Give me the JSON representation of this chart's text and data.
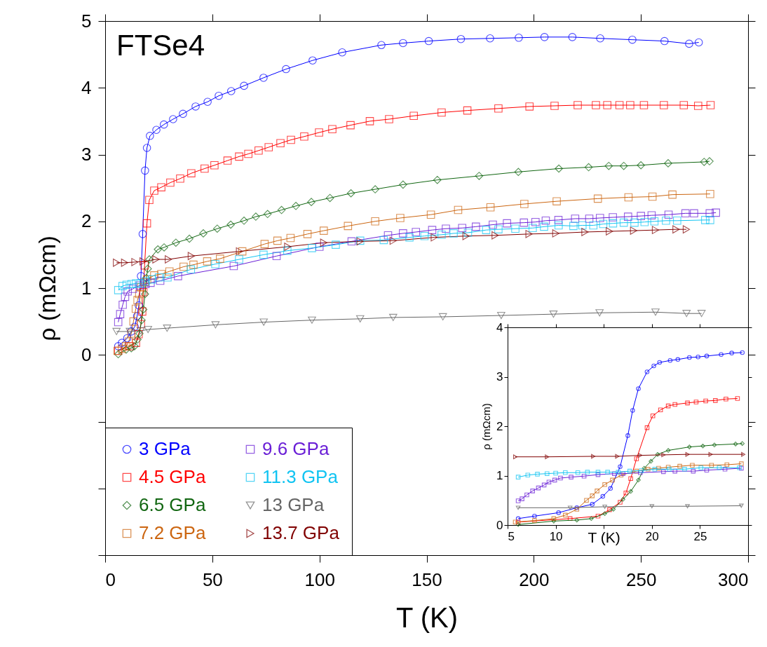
{
  "chart_data": [
    {
      "type": "line",
      "xlabel": "T (K)",
      "ylabel": "ρ (mΩcm)",
      "annotations": [
        "FTSe4"
      ],
      "xlim": [
        0,
        300
      ],
      "ylim": [
        -3,
        5
      ],
      "xticks": [
        0,
        50,
        100,
        150,
        200,
        250,
        300
      ],
      "yticks": [
        {
          "value": -3,
          "label": null
        },
        {
          "value": -2,
          "label": null
        },
        {
          "value": -1,
          "label": null
        },
        0,
        1,
        2,
        3,
        4,
        5
      ],
      "grid": false,
      "legend": "bottom left",
      "line_style": "solid",
      "series": [
        {
          "name": "3 GPa",
          "color": "#0000ff",
          "marker": "circle",
          "x": [
            6.1,
            7.8,
            10.3,
            12.2,
            13.8,
            14.9,
            15.7,
            16.7,
            17.5,
            18.6,
            19.5,
            20.9,
            23.9,
            27.4,
            31.7,
            36.3,
            42.2,
            47.8,
            53,
            58.8,
            64.8,
            73.9,
            84.4,
            96.8,
            110.6,
            128.9,
            139,
            151,
            166,
            179.6,
            193,
            205,
            218,
            231,
            246,
            261,
            272.5,
            277
          ],
          "values": [
            0.13,
            0.18,
            0.25,
            0.35,
            0.42,
            0.58,
            0.74,
            1.18,
            1.81,
            2.76,
            3.1,
            3.28,
            3.37,
            3.45,
            3.53,
            3.61,
            3.72,
            3.79,
            3.88,
            3.95,
            4.03,
            4.15,
            4.28,
            4.41,
            4.53,
            4.64,
            4.67,
            4.7,
            4.73,
            4.74,
            4.75,
            4.76,
            4.76,
            4.74,
            4.72,
            4.7,
            4.66,
            4.68
          ]
        },
        {
          "name": "4.5 GPa",
          "color": "#ff0000",
          "marker": "square",
          "x": [
            6.1,
            11.5,
            14.4,
            15.6,
            16.7,
            17.3,
            17.8,
            18.4,
            19.5,
            20.6,
            22.9,
            26.2,
            30.4,
            35,
            40.2,
            46.4,
            51,
            57.1,
            62.5,
            66.8,
            71.6,
            76.3,
            81.8,
            86.7,
            92.9,
            99.8,
            106,
            114.5,
            123.5,
            132.5,
            144,
            157,
            169,
            183.5,
            198,
            209.7,
            220.5,
            229,
            234.3,
            240,
            245,
            251.4,
            260.7,
            270,
            276.7,
            282.5
          ],
          "values": [
            0.06,
            0.13,
            0.18,
            0.31,
            0.46,
            0.65,
            0.94,
            1.34,
            1.97,
            2.32,
            2.46,
            2.51,
            2.58,
            2.64,
            2.72,
            2.79,
            2.84,
            2.91,
            2.97,
            3.01,
            3.06,
            3.11,
            3.17,
            3.22,
            3.27,
            3.33,
            3.38,
            3.44,
            3.5,
            3.53,
            3.58,
            3.63,
            3.66,
            3.69,
            3.72,
            3.73,
            3.74,
            3.74,
            3.74,
            3.74,
            3.74,
            3.74,
            3.74,
            3.74,
            3.73,
            3.74
          ]
        },
        {
          "name": "6.5 GPa",
          "color": "#116611",
          "marker": "diamond",
          "x": [
            6.1,
            9.8,
            12.2,
            13.7,
            15.1,
            16,
            17,
            17.8,
            18.6,
            19.2,
            19.9,
            20.6,
            24.6,
            27.5,
            33,
            39.3,
            45.8,
            52.3,
            58.6,
            64.8,
            70.3,
            75.8,
            82.3,
            89,
            96.2,
            104.9,
            114.7,
            126,
            139,
            155,
            174.5,
            192.8,
            211.7,
            225.6,
            235,
            242,
            250,
            262.7,
            279.5,
            282
          ],
          "values": [
            0.01,
            0.08,
            0.1,
            0.13,
            0.23,
            0.32,
            0.52,
            0.68,
            0.91,
            1.15,
            1.29,
            1.43,
            1.58,
            1.61,
            1.68,
            1.74,
            1.82,
            1.89,
            1.95,
            2.01,
            2.07,
            2.11,
            2.17,
            2.23,
            2.29,
            2.35,
            2.42,
            2.48,
            2.55,
            2.62,
            2.68,
            2.74,
            2.79,
            2.81,
            2.83,
            2.83,
            2.84,
            2.87,
            2.89,
            2.9
          ]
        },
        {
          "name": "7.2 GPa",
          "color": "#cc6611",
          "marker": "square",
          "x": [
            5.8,
            7.8,
            9.8,
            11,
            12.2,
            13.2,
            14.3,
            15.1,
            15.9,
            16.8,
            18.4,
            19.6,
            22.9,
            26.2,
            30,
            36.6,
            41.2,
            47.6,
            53.6,
            64,
            74.4,
            80.4,
            86.5,
            94.4,
            102,
            113.3,
            126,
            137.7,
            152,
            164.7,
            179.8,
            195.6,
            210.7,
            229.9,
            244.2,
            255.4,
            264.7,
            282.3
          ],
          "values": [
            0.06,
            0.09,
            0.13,
            0.2,
            0.32,
            0.5,
            0.69,
            0.82,
            0.91,
            1.01,
            1.09,
            1.13,
            1.19,
            1.21,
            1.25,
            1.32,
            1.35,
            1.4,
            1.44,
            1.55,
            1.66,
            1.71,
            1.75,
            1.81,
            1.86,
            1.93,
            2.0,
            2.05,
            2.1,
            2.17,
            2.21,
            2.26,
            2.3,
            2.34,
            2.36,
            2.37,
            2.4,
            2.41
          ]
        },
        {
          "name": "9.6 GPa",
          "color": "#6a1fd6",
          "marker": "square",
          "x": [
            6.1,
            7,
            8.2,
            9.3,
            10.5,
            12.95,
            16.1,
            18.8,
            21.2,
            25.7,
            34,
            60,
            80,
            100,
            115,
            132,
            139,
            145,
            152.6,
            159,
            166.6,
            173,
            180.9,
            187.5,
            195.4,
            200.8,
            205.6,
            211.5,
            219.3,
            225.9,
            230.9,
            236.9,
            244,
            250,
            255,
            262.9,
            270.8,
            274.8,
            282.1,
            285
          ],
          "values": [
            0.49,
            0.61,
            0.75,
            0.87,
            0.95,
            0.99,
            1.04,
            1.06,
            1.08,
            1.11,
            1.18,
            1.33,
            1.48,
            1.62,
            1.7,
            1.79,
            1.82,
            1.84,
            1.87,
            1.89,
            1.9,
            1.92,
            1.95,
            1.97,
            1.98,
            1.99,
            2.01,
            2.02,
            2.04,
            2.04,
            2.05,
            2.06,
            2.07,
            2.08,
            2.09,
            2.1,
            2.12,
            2.12,
            2.12,
            2.13
          ]
        },
        {
          "name": "11.3 GPa",
          "color": "#11c4f2",
          "marker": "square",
          "x": [
            6.1,
            8.1,
            10,
            12.3,
            14.4,
            16.5,
            18.9,
            21.8,
            25.1,
            29.1,
            40,
            51.4,
            62.5,
            73.9,
            85,
            96.5,
            107.6,
            119,
            130,
            142,
            149,
            157,
            162.6,
            169.3,
            177.8,
            183.5,
            191.4,
            199.5,
            204.8,
            211.6,
            218.5,
            222.7,
            227.8,
            232.4,
            237,
            242,
            247,
            251.7,
            256.3,
            261.7,
            266.9,
            280,
            282.3
          ],
          "values": [
            0.97,
            1.03,
            1.05,
            1.06,
            1.07,
            1.07,
            1.1,
            1.13,
            1.16,
            1.16,
            1.28,
            1.36,
            1.43,
            1.5,
            1.56,
            1.6,
            1.65,
            1.71,
            1.72,
            1.76,
            1.78,
            1.8,
            1.82,
            1.83,
            1.87,
            1.88,
            1.89,
            1.9,
            1.92,
            1.94,
            1.93,
            1.94,
            1.94,
            1.96,
            1.97,
            1.98,
            1.98,
            1.99,
            2.0,
            2.01,
            2.01,
            2.02,
            2.02
          ]
        },
        {
          "name": "13 GPa",
          "color": "#666666",
          "marker": "triangle-down",
          "x": [
            5.3,
            11.5,
            16.6,
            20,
            28.9,
            51.5,
            74,
            96.5,
            119,
            134.4,
            157.6,
            184.8,
            209.2,
            230.7,
            256.8,
            271.3,
            278.3
          ],
          "values": [
            0.35,
            0.35,
            0.36,
            0.38,
            0.4,
            0.45,
            0.49,
            0.52,
            0.54,
            0.56,
            0.57,
            0.59,
            0.61,
            0.63,
            0.64,
            0.62,
            0.62
          ]
        },
        {
          "name": "13.7 GPa",
          "color": "#800000",
          "marker": "triangle-right",
          "x": [
            5.3,
            9.1,
            13.9,
            17.7,
            23.7,
            29.5,
            40.2,
            62.7,
            85.2,
            102,
            119,
            134.4,
            153.6,
            168.4,
            182,
            197.8,
            210.3,
            223.9,
            235.3,
            246.6,
            256.8,
            266.4,
            271.2
          ],
          "values": [
            1.38,
            1.38,
            1.39,
            1.4,
            1.43,
            1.43,
            1.48,
            1.55,
            1.62,
            1.68,
            1.7,
            1.71,
            1.76,
            1.78,
            1.79,
            1.81,
            1.82,
            1.84,
            1.85,
            1.86,
            1.87,
            1.88,
            1.88
          ]
        }
      ]
    },
    {
      "type": "line",
      "xlabel": "T (K)",
      "ylabel": "ρ (mΩcm)",
      "xlim": [
        5,
        30
      ],
      "ylim": [
        0,
        4
      ],
      "xticks": [
        5,
        10,
        {
          "value": 15,
          "label": null
        },
        20,
        25,
        {
          "value": 30,
          "label": null
        }
      ],
      "yticks": [
        0,
        1,
        2,
        3,
        4
      ],
      "grid": false,
      "line_style": "solid",
      "series": [
        {
          "color": "#0000ff",
          "marker": "circle",
          "x": [
            6.1,
            7.8,
            10.3,
            12.2,
            13.8,
            14.9,
            15.7,
            16.7,
            17.5,
            18.0,
            18.6,
            19.5,
            20.2,
            20.8,
            21.9,
            22.7,
            23.9,
            24.8,
            25.7,
            27.2,
            28.3,
            29.4
          ],
          "values": [
            0.13,
            0.18,
            0.25,
            0.35,
            0.42,
            0.58,
            0.74,
            1.18,
            1.81,
            2.32,
            2.76,
            3.1,
            3.22,
            3.29,
            3.33,
            3.35,
            3.39,
            3.4,
            3.42,
            3.45,
            3.48,
            3.49
          ]
        },
        {
          "color": "#ff0000",
          "marker": "square",
          "x": [
            6.1,
            11.5,
            14.4,
            15.6,
            16.7,
            17.3,
            17.8,
            18.4,
            19.5,
            20.1,
            20.9,
            21.7,
            22.4,
            23.7,
            24.6,
            25.6,
            26.6,
            27.7,
            28.9
          ],
          "values": [
            0.06,
            0.13,
            0.18,
            0.31,
            0.46,
            0.65,
            0.94,
            1.34,
            1.97,
            2.21,
            2.33,
            2.41,
            2.44,
            2.47,
            2.49,
            2.51,
            2.52,
            2.55,
            2.56
          ]
        },
        {
          "color": "#116611",
          "marker": "diamond",
          "x": [
            6.1,
            9.8,
            12.2,
            13.7,
            15.1,
            16,
            17,
            17.8,
            18.6,
            19.2,
            19.9,
            20.6,
            21.7,
            23.9,
            25.3,
            26.5,
            28.7,
            29.4
          ],
          "values": [
            0.01,
            0.08,
            0.1,
            0.13,
            0.23,
            0.32,
            0.52,
            0.68,
            0.91,
            1.15,
            1.29,
            1.43,
            1.51,
            1.58,
            1.6,
            1.62,
            1.64,
            1.65
          ]
        },
        {
          "color": "#cc6611",
          "marker": "square",
          "x": [
            5.8,
            7.8,
            9.8,
            11,
            12.2,
            13.2,
            13.8,
            14.3,
            15.1,
            15.9,
            16.8,
            18.4,
            19.6,
            20.7,
            21.7,
            22.9,
            24.2,
            26.2,
            27.8,
            29.3
          ],
          "values": [
            0.06,
            0.09,
            0.13,
            0.2,
            0.32,
            0.5,
            0.59,
            0.69,
            0.82,
            0.91,
            1.01,
            1.09,
            1.13,
            1.15,
            1.17,
            1.19,
            1.21,
            1.21,
            1.22,
            1.24
          ]
        },
        {
          "color": "#6a1fd6",
          "marker": "square",
          "x": [
            6.1,
            6.5,
            7,
            7.6,
            8.2,
            8.8,
            9.3,
            9.9,
            10.5,
            11.6,
            12.95,
            14.4,
            16.1,
            17,
            18.8,
            21.2,
            22.4,
            24.3,
            25.7,
            27.6,
            29.3
          ],
          "values": [
            0.49,
            0.53,
            0.61,
            0.69,
            0.75,
            0.81,
            0.87,
            0.91,
            0.95,
            0.97,
            0.99,
            1.02,
            1.04,
            1.04,
            1.06,
            1.08,
            1.09,
            1.09,
            1.11,
            1.13,
            1.15
          ]
        },
        {
          "color": "#11c4f2",
          "marker": "square",
          "x": [
            6.1,
            7.1,
            8.1,
            9.1,
            10,
            11,
            12.3,
            13.3,
            14.4,
            15.4,
            16.5,
            17.7,
            18.9,
            20.3,
            21.8,
            23.4,
            25.1,
            27,
            29.1
          ],
          "values": [
            0.97,
            1.01,
            1.03,
            1.04,
            1.05,
            1.06,
            1.06,
            1.07,
            1.07,
            1.07,
            1.07,
            1.09,
            1.1,
            1.13,
            1.13,
            1.13,
            1.16,
            1.16,
            1.16
          ]
        },
        {
          "color": "#666666",
          "marker": "triangle-down",
          "x": [
            6.1,
            11.5,
            15.1,
            20,
            23.7,
            29.3
          ],
          "values": [
            0.35,
            0.35,
            0.37,
            0.38,
            0.38,
            0.39
          ]
        },
        {
          "color": "#800000",
          "marker": "triangle-right",
          "x": [
            5.8,
            9.1,
            13.9,
            16.4,
            18.8,
            21.2,
            23.7,
            26.1,
            29.5
          ],
          "values": [
            1.38,
            1.38,
            1.39,
            1.39,
            1.41,
            1.42,
            1.43,
            1.43,
            1.43
          ]
        }
      ]
    }
  ]
}
